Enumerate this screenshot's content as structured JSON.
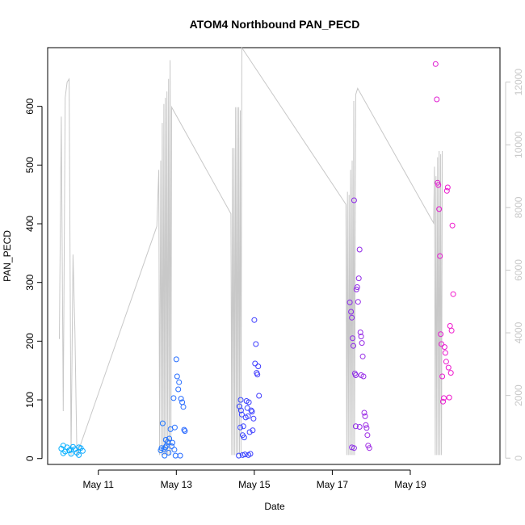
{
  "chart_data": {
    "type": "scatter",
    "title": "ATOM4 Northbound PAN_PECD",
    "xlabel": "Date",
    "ylabel": "PAN_PECD",
    "x_ticks": [
      "May 11",
      "May 13",
      "May 15",
      "May 17",
      "May 19"
    ],
    "x_tick_days": [
      11,
      13,
      15,
      17,
      19
    ],
    "xlim_days": [
      9.7,
      21.3
    ],
    "ylim": [
      -10,
      700
    ],
    "y_ticks": [
      0,
      100,
      200,
      300,
      400,
      500,
      600
    ],
    "y2lim": [
      -200,
      13100
    ],
    "y2_ticks": [
      0,
      2000,
      4000,
      6000,
      8000,
      10000,
      12000
    ],
    "grid": false,
    "colors": {
      "line": "#c8c8c8",
      "right_axis": "#c8c8c8",
      "points_start": "#00b4ff",
      "points_mid": "#3c3cff",
      "points_end": "#ff14c8"
    },
    "series": [
      {
        "kind": "points",
        "axis": "left",
        "points": [
          [
            10.05,
            17,
            0.02
          ],
          [
            10.1,
            22,
            0.02
          ],
          [
            10.15,
            12,
            0.02
          ],
          [
            10.2,
            19,
            0.03
          ],
          [
            10.25,
            14,
            0.03
          ],
          [
            10.3,
            8,
            0.03
          ],
          [
            10.35,
            20,
            0.04
          ],
          [
            10.4,
            16,
            0.04
          ],
          [
            10.45,
            10,
            0.04
          ],
          [
            10.5,
            6,
            0.05
          ],
          [
            10.55,
            18,
            0.05
          ],
          [
            10.6,
            13,
            0.05
          ],
          [
            10.1,
            9,
            0.02
          ],
          [
            10.3,
            15,
            0.03
          ],
          [
            10.5,
            19,
            0.05
          ],
          [
            12.6,
            14,
            0.26
          ],
          [
            12.62,
            18,
            0.26
          ],
          [
            12.65,
            60,
            0.26
          ],
          [
            12.68,
            16,
            0.27
          ],
          [
            12.7,
            5,
            0.27
          ],
          [
            12.73,
            32,
            0.27
          ],
          [
            12.75,
            22,
            0.27
          ],
          [
            12.78,
            28,
            0.28
          ],
          [
            12.8,
            10,
            0.28
          ],
          [
            12.82,
            34,
            0.28
          ],
          [
            12.85,
            50,
            0.28
          ],
          [
            12.88,
            21,
            0.28
          ],
          [
            12.9,
            27,
            0.29
          ],
          [
            12.93,
            103,
            0.29
          ],
          [
            12.96,
            53,
            0.29
          ],
          [
            12.98,
            5,
            0.29
          ],
          [
            13.0,
            169,
            0.3
          ],
          [
            13.02,
            140,
            0.3
          ],
          [
            13.05,
            118,
            0.3
          ],
          [
            13.07,
            130,
            0.3
          ],
          [
            13.1,
            5,
            0.31
          ],
          [
            13.12,
            102,
            0.31
          ],
          [
            13.15,
            96,
            0.31
          ],
          [
            13.18,
            88,
            0.31
          ],
          [
            13.2,
            49,
            0.32
          ],
          [
            13.22,
            47,
            0.32
          ],
          [
            12.72,
            19,
            0.27
          ],
          [
            12.95,
            15,
            0.29
          ],
          [
            14.6,
            5,
            0.46
          ],
          [
            14.62,
            89,
            0.46
          ],
          [
            14.64,
            53,
            0.46
          ],
          [
            14.66,
            82,
            0.47
          ],
          [
            14.68,
            75,
            0.47
          ],
          [
            14.7,
            40,
            0.47
          ],
          [
            14.72,
            55,
            0.47
          ],
          [
            14.74,
            36,
            0.47
          ],
          [
            14.76,
            7,
            0.48
          ],
          [
            14.78,
            70,
            0.48
          ],
          [
            14.8,
            98,
            0.48
          ],
          [
            14.82,
            86,
            0.48
          ],
          [
            14.84,
            72,
            0.48
          ],
          [
            14.86,
            96,
            0.49
          ],
          [
            14.88,
            45,
            0.49
          ],
          [
            14.9,
            8,
            0.49
          ],
          [
            14.92,
            82,
            0.49
          ],
          [
            14.94,
            80,
            0.49
          ],
          [
            14.96,
            48,
            0.5
          ],
          [
            14.98,
            68,
            0.5
          ],
          [
            15.0,
            236,
            0.5
          ],
          [
            15.02,
            162,
            0.5
          ],
          [
            15.04,
            195,
            0.5
          ],
          [
            15.06,
            146,
            0.51
          ],
          [
            15.08,
            143,
            0.51
          ],
          [
            15.1,
            157,
            0.51
          ],
          [
            15.12,
            107,
            0.51
          ],
          [
            14.7,
            6,
            0.47
          ],
          [
            14.85,
            6,
            0.48
          ],
          [
            14.65,
            100,
            0.46
          ],
          [
            17.45,
            266,
            0.7
          ],
          [
            17.48,
            250,
            0.7
          ],
          [
            17.5,
            240,
            0.7
          ],
          [
            17.52,
            205,
            0.71
          ],
          [
            17.54,
            192,
            0.71
          ],
          [
            17.56,
            440,
            0.71
          ],
          [
            17.58,
            145,
            0.71
          ],
          [
            17.6,
            142,
            0.71
          ],
          [
            17.62,
            288,
            0.72
          ],
          [
            17.64,
            292,
            0.72
          ],
          [
            17.66,
            267,
            0.72
          ],
          [
            17.68,
            307,
            0.72
          ],
          [
            17.7,
            356,
            0.72
          ],
          [
            17.72,
            215,
            0.73
          ],
          [
            17.74,
            208,
            0.73
          ],
          [
            17.76,
            197,
            0.73
          ],
          [
            17.78,
            174,
            0.73
          ],
          [
            17.8,
            140,
            0.73
          ],
          [
            17.82,
            78,
            0.74
          ],
          [
            17.84,
            72,
            0.74
          ],
          [
            17.86,
            57,
            0.74
          ],
          [
            17.88,
            52,
            0.74
          ],
          [
            17.9,
            40,
            0.74
          ],
          [
            17.92,
            22,
            0.75
          ],
          [
            17.5,
            19,
            0.7
          ],
          [
            17.56,
            18,
            0.71
          ],
          [
            17.95,
            18,
            0.75
          ],
          [
            17.6,
            55,
            0.71
          ],
          [
            17.7,
            54,
            0.72
          ],
          [
            17.74,
            142,
            0.73
          ],
          [
            19.65,
            672,
            0.92
          ],
          [
            19.68,
            612,
            0.92
          ],
          [
            19.7,
            470,
            0.92
          ],
          [
            19.72,
            466,
            0.93
          ],
          [
            19.74,
            425,
            0.93
          ],
          [
            19.76,
            345,
            0.93
          ],
          [
            19.78,
            212,
            0.93
          ],
          [
            19.8,
            195,
            0.94
          ],
          [
            19.82,
            140,
            0.94
          ],
          [
            19.84,
            97,
            0.94
          ],
          [
            19.86,
            103,
            0.94
          ],
          [
            19.88,
            190,
            0.94
          ],
          [
            19.9,
            180,
            0.95
          ],
          [
            19.92,
            165,
            0.95
          ],
          [
            19.94,
            456,
            0.95
          ],
          [
            19.96,
            462,
            0.95
          ],
          [
            19.98,
            155,
            0.95
          ],
          [
            20.0,
            104,
            0.96
          ],
          [
            20.02,
            226,
            0.96
          ],
          [
            20.04,
            146,
            0.96
          ],
          [
            20.06,
            218,
            0.96
          ],
          [
            20.08,
            397,
            0.96
          ],
          [
            20.1,
            280,
            0.97
          ]
        ]
      },
      {
        "kind": "line",
        "axis": "right",
        "points": [
          [
            10.0,
            3800
          ],
          [
            10.05,
            10900
          ],
          [
            10.1,
            1500
          ],
          [
            10.15,
            11500
          ],
          [
            10.2,
            12000
          ],
          [
            10.25,
            12100
          ],
          [
            10.3,
            100
          ],
          [
            10.35,
            6500
          ],
          [
            10.4,
            4000
          ],
          [
            10.45,
            100
          ],
          [
            12.5,
            7400
          ],
          [
            12.55,
            9200
          ],
          [
            12.57,
            100
          ],
          [
            12.6,
            9500
          ],
          [
            12.62,
            100
          ],
          [
            12.64,
            10700
          ],
          [
            12.66,
            100
          ],
          [
            12.68,
            11300
          ],
          [
            12.7,
            100
          ],
          [
            12.72,
            11500
          ],
          [
            12.74,
            100
          ],
          [
            12.76,
            11700
          ],
          [
            12.78,
            100
          ],
          [
            12.8,
            12100
          ],
          [
            12.82,
            100
          ],
          [
            12.84,
            12700
          ],
          [
            12.86,
            100
          ],
          [
            12.88,
            11200
          ],
          [
            14.4,
            7800
          ],
          [
            14.42,
            100
          ],
          [
            14.44,
            9900
          ],
          [
            14.46,
            100
          ],
          [
            14.48,
            9900
          ],
          [
            14.5,
            100
          ],
          [
            14.52,
            11200
          ],
          [
            14.54,
            100
          ],
          [
            14.56,
            11200
          ],
          [
            14.58,
            100
          ],
          [
            14.6,
            11200
          ],
          [
            14.62,
            100
          ],
          [
            14.64,
            11100
          ],
          [
            14.66,
            100
          ],
          [
            14.68,
            13100
          ],
          [
            17.35,
            8100
          ],
          [
            17.37,
            100
          ],
          [
            17.39,
            8500
          ],
          [
            17.41,
            100
          ],
          [
            17.43,
            8400
          ],
          [
            17.45,
            100
          ],
          [
            17.47,
            9200
          ],
          [
            17.49,
            100
          ],
          [
            17.51,
            9500
          ],
          [
            17.53,
            100
          ],
          [
            17.55,
            11400
          ],
          [
            17.57,
            100
          ],
          [
            17.6,
            11600
          ],
          [
            17.65,
            11800
          ],
          [
            19.6,
            7500
          ],
          [
            19.62,
            9300
          ],
          [
            19.64,
            100
          ],
          [
            19.66,
            9000
          ],
          [
            19.68,
            100
          ],
          [
            19.7,
            9600
          ],
          [
            19.72,
            100
          ],
          [
            19.74,
            9800
          ],
          [
            19.76,
            100
          ],
          [
            19.78,
            9700
          ],
          [
            19.8,
            100
          ],
          [
            19.82,
            9800
          ]
        ]
      }
    ]
  }
}
